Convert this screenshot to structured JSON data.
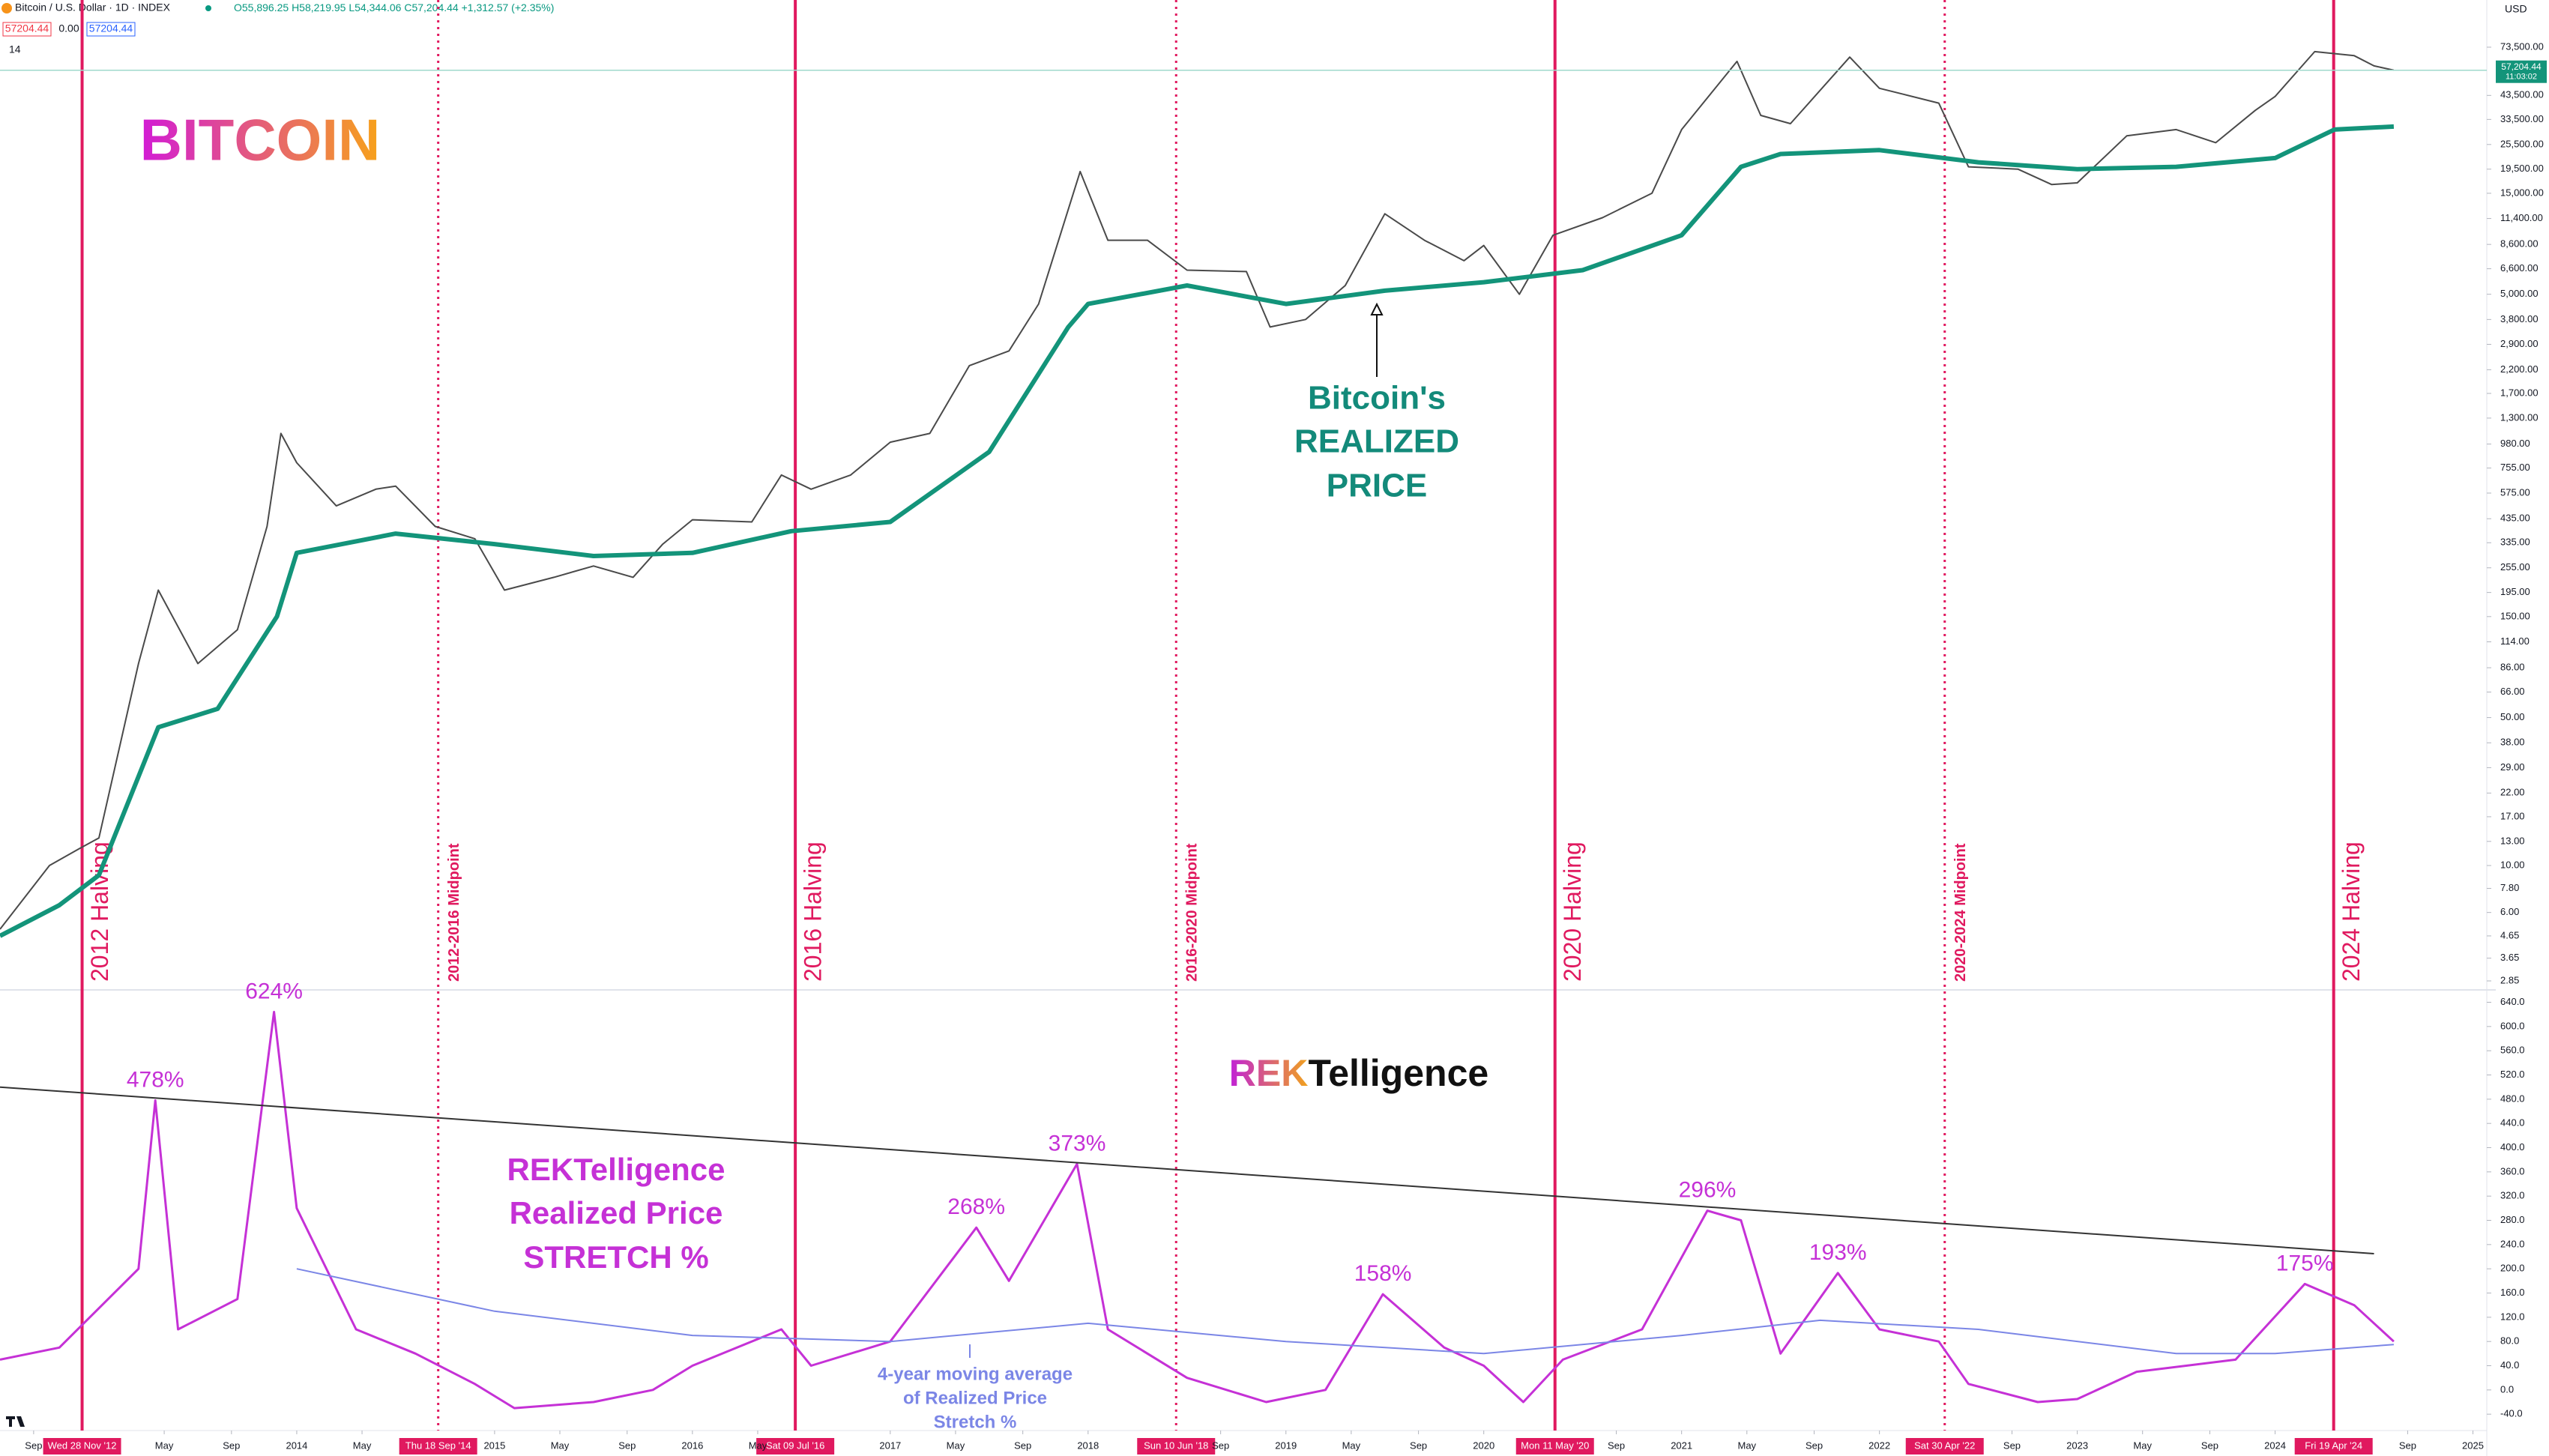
{
  "header": {
    "symbol": "Bitcoin / U.S. Dollar · 1D · INDEX",
    "ohlc": [
      "O55,896.25",
      "H58,219.95",
      "L54,344.06",
      "C57,204.44",
      "+1,312.57 (+2.35%)"
    ],
    "boxes": [
      "57204.44",
      "0.00",
      "57204.44"
    ],
    "interval": "14",
    "currency": "USD"
  },
  "annotations": {
    "bitcoin_logo": "BITCOIN",
    "realized_note": [
      "Bitcoin's",
      "REALIZED",
      "PRICE"
    ],
    "rekt_logo": "REKTelligence",
    "stretch_title": [
      "REKTelligence",
      "Realized Price",
      "STRETCH %"
    ],
    "ma_note": [
      "4-year moving average",
      "of Realized Price",
      "Stretch %"
    ]
  },
  "chart_data": [
    {
      "type": "line",
      "log_scale": true,
      "xlim": [
        2012.5,
        2025.07
      ],
      "ylim": [
        2.67,
        122800
      ],
      "yticks": [
        {
          "value": 73500,
          "label": "73,500.00"
        },
        {
          "value": 43500,
          "label": "43,500.00"
        },
        {
          "value": 33500,
          "label": "33,500.00"
        },
        {
          "value": 25500,
          "label": "25,500.00"
        },
        {
          "value": 19500,
          "label": "19,500.00"
        },
        {
          "value": 15000,
          "label": "15,000.00"
        },
        {
          "value": 11400,
          "label": "11,400.00"
        },
        {
          "value": 8600,
          "label": "8,600.00"
        },
        {
          "value": 6600,
          "label": "6,600.00"
        },
        {
          "value": 5000,
          "label": "5,000.00"
        },
        {
          "value": 3800,
          "label": "3,800.00"
        },
        {
          "value": 2900,
          "label": "2,900.00"
        },
        {
          "value": 2200,
          "label": "2,200.00"
        },
        {
          "value": 1700,
          "label": "1,700.00"
        },
        {
          "value": 1300,
          "label": "1,300.00"
        },
        {
          "value": 980,
          "label": "980.00"
        },
        {
          "value": 755,
          "label": "755.00"
        },
        {
          "value": 575,
          "label": "575.00"
        },
        {
          "value": 435,
          "label": "435.00"
        },
        {
          "value": 335,
          "label": "335.00"
        },
        {
          "value": 255,
          "label": "255.00"
        },
        {
          "value": 195,
          "label": "195.00"
        },
        {
          "value": 150,
          "label": "150.00"
        },
        {
          "value": 114,
          "label": "114.00"
        },
        {
          "value": 86,
          "label": "86.00"
        },
        {
          "value": 66,
          "label": "66.00"
        },
        {
          "value": 50,
          "label": "50.00"
        },
        {
          "value": 38,
          "label": "38.00"
        },
        {
          "value": 29,
          "label": "29.00"
        },
        {
          "value": 22,
          "label": "22.00"
        },
        {
          "value": 17,
          "label": "17.00"
        },
        {
          "value": 13,
          "label": "13.00"
        },
        {
          "value": 10,
          "label": "10.00"
        },
        {
          "value": 7.8,
          "label": "7.80"
        },
        {
          "value": 6,
          "label": "6.00"
        },
        {
          "value": 4.65,
          "label": "4.65"
        },
        {
          "value": 3.65,
          "label": "3.65"
        },
        {
          "value": 2.85,
          "label": "2.85"
        }
      ],
      "series": [
        {
          "color": "#4a4a4a",
          "width": 2,
          "x": [
            2012.5,
            2012.75,
            2012.9,
            2013.0,
            2013.2,
            2013.3,
            2013.5,
            2013.7,
            2013.85,
            2013.92,
            2014.0,
            2014.2,
            2014.4,
            2014.5,
            2014.7,
            2014.9,
            2015.05,
            2015.3,
            2015.5,
            2015.7,
            2015.85,
            2016.0,
            2016.3,
            2016.45,
            2016.6,
            2016.8,
            2017.0,
            2017.2,
            2017.4,
            2017.6,
            2017.75,
            2017.96,
            2018.1,
            2018.3,
            2018.5,
            2018.8,
            2018.92,
            2019.1,
            2019.3,
            2019.5,
            2019.7,
            2019.9,
            2020.0,
            2020.18,
            2020.35,
            2020.6,
            2020.85,
            2021.0,
            2021.28,
            2021.4,
            2021.55,
            2021.85,
            2022.0,
            2022.3,
            2022.45,
            2022.7,
            2022.87,
            2023.0,
            2023.25,
            2023.5,
            2023.7,
            2023.9,
            2024.0,
            2024.2,
            2024.4,
            2024.5,
            2024.6
          ],
          "values": [
            5,
            10,
            12,
            13.5,
            90,
            200,
            90,
            130,
            400,
            1100,
            800,
            500,
            600,
            620,
            400,
            350,
            200,
            230,
            260,
            230,
            330,
            430,
            420,
            700,
            600,
            700,
            1000,
            1100,
            2300,
            2700,
            4500,
            19000,
            9000,
            9000,
            6500,
            6400,
            3500,
            3800,
            5500,
            12000,
            9000,
            7200,
            8500,
            5000,
            9500,
            11500,
            15000,
            30000,
            63000,
            35000,
            32000,
            66000,
            47000,
            40000,
            20000,
            19500,
            16500,
            16800,
            28000,
            30000,
            26000,
            37000,
            43000,
            70000,
            67000,
            60000,
            57204.44
          ]
        },
        {
          "color": "#13947a",
          "width": 6,
          "x": [
            2012.5,
            2012.8,
            2013.0,
            2013.3,
            2013.6,
            2013.9,
            2014.0,
            2014.5,
            2015.0,
            2015.5,
            2016.0,
            2016.5,
            2017.0,
            2017.5,
            2017.9,
            2018.0,
            2018.5,
            2019.0,
            2019.5,
            2020.0,
            2020.5,
            2021.0,
            2021.3,
            2021.5,
            2022.0,
            2022.5,
            2023.0,
            2023.5,
            2024.0,
            2024.3,
            2024.6
          ],
          "values": [
            4.65,
            6.5,
            9,
            45,
            55,
            150,
            300,
            370,
            330,
            290,
            300,
            380,
            420,
            900,
            3500,
            4500,
            5500,
            4500,
            5200,
            5700,
            6500,
            9500,
            20000,
            23000,
            24000,
            21000,
            19500,
            20000,
            22000,
            30000,
            31000
          ]
        }
      ],
      "events": [
        {
          "x": 2012.915,
          "label": "2012 Halving",
          "date": "Wed 28 Nov '12",
          "style": "solid"
        },
        {
          "x": 2014.715,
          "label": "2012-2016 Midpoint",
          "date": "Thu 18 Sep '14",
          "style": "dotted"
        },
        {
          "x": 2016.52,
          "label": "2016 Halving",
          "date": "Sat 09 Jul '16",
          "style": "solid"
        },
        {
          "x": 2018.445,
          "label": "2016-2020 Midpoint",
          "date": "Sun 10 Jun '18",
          "style": "dotted"
        },
        {
          "x": 2020.36,
          "label": "2020 Halving",
          "date": "Mon 11 May '20",
          "style": "solid"
        },
        {
          "x": 2022.33,
          "label": "2020-2024 Midpoint",
          "date": "Sat 30 Apr '22",
          "style": "dotted"
        },
        {
          "x": 2024.296,
          "label": "2024 Halving",
          "date": "Fri 19 Apr '24",
          "style": "solid"
        }
      ],
      "event_color": "#e0195f",
      "last_price": {
        "value": 57204.44,
        "label": "57,204.44",
        "time": "11:03:02",
        "color": "#13947a"
      }
    },
    {
      "type": "line",
      "xlim": [
        2012.5,
        2025.07
      ],
      "ylim": [
        -67,
        653
      ],
      "yticks": [
        {
          "value": 640,
          "label": "640.0"
        },
        {
          "value": 600,
          "label": "600.0"
        },
        {
          "value": 560,
          "label": "560.0"
        },
        {
          "value": 520,
          "label": "520.0"
        },
        {
          "value": 480,
          "label": "480.0"
        },
        {
          "value": 440,
          "label": "440.0"
        },
        {
          "value": 400,
          "label": "400.0"
        },
        {
          "value": 360,
          "label": "360.0"
        },
        {
          "value": 320,
          "label": "320.0"
        },
        {
          "value": 280,
          "label": "280.0"
        },
        {
          "value": 240,
          "label": "240.0"
        },
        {
          "value": 200,
          "label": "200.0"
        },
        {
          "value": 160,
          "label": "160.0"
        },
        {
          "value": 120,
          "label": "120.0"
        },
        {
          "value": 80,
          "label": "80.0"
        },
        {
          "value": 40,
          "label": "40.0"
        },
        {
          "value": 0,
          "label": "0.0"
        },
        {
          "value": -40,
          "label": "-40.0"
        }
      ],
      "xticks": [
        {
          "value": 2012.67,
          "label": "Sep"
        },
        {
          "value": 2013.33,
          "label": "May"
        },
        {
          "value": 2013.67,
          "label": "Sep"
        },
        2014,
        {
          "value": 2014.33,
          "label": "May"
        },
        2015,
        {
          "value": 2015.33,
          "label": "May"
        },
        {
          "value": 2015.67,
          "label": "Sep"
        },
        2016,
        {
          "value": 2016.33,
          "label": "May"
        },
        2017,
        {
          "value": 2017.33,
          "label": "May"
        },
        {
          "value": 2017.67,
          "label": "Sep"
        },
        2018,
        {
          "value": 2018.67,
          "label": "Sep"
        },
        2019,
        {
          "value": 2019.33,
          "label": "May"
        },
        {
          "value": 2019.67,
          "label": "Sep"
        },
        2020,
        {
          "value": 2020.67,
          "label": "Sep"
        },
        2021,
        {
          "value": 2021.33,
          "label": "May"
        },
        {
          "value": 2021.67,
          "label": "Sep"
        },
        2022,
        {
          "value": 2022.67,
          "label": "Sep"
        },
        2023,
        {
          "value": 2023.33,
          "label": "May"
        },
        {
          "value": 2023.67,
          "label": "Sep"
        },
        2024,
        {
          "value": 2024.67,
          "label": "Sep"
        },
        2025
      ],
      "series": [
        {
          "color": "#c531d6",
          "width": 3,
          "x": [
            2012.5,
            2012.8,
            2013.2,
            2013.285,
            2013.4,
            2013.7,
            2013.885,
            2014.0,
            2014.3,
            2014.6,
            2014.9,
            2015.1,
            2015.5,
            2015.8,
            2016.0,
            2016.45,
            2016.6,
            2017.0,
            2017.435,
            2017.6,
            2017.944,
            2018.1,
            2018.5,
            2018.9,
            2019.2,
            2019.49,
            2019.8,
            2020.0,
            2020.2,
            2020.4,
            2020.8,
            2021.13,
            2021.3,
            2021.5,
            2021.79,
            2022.0,
            2022.3,
            2022.45,
            2022.8,
            2023.0,
            2023.3,
            2023.8,
            2024.15,
            2024.4,
            2024.6
          ],
          "values": [
            50,
            70,
            200,
            478,
            100,
            150,
            624,
            300,
            100,
            60,
            10,
            -30,
            -20,
            0,
            40,
            100,
            40,
            80,
            268,
            180,
            373,
            100,
            20,
            -20,
            0,
            158,
            70,
            40,
            -20,
            50,
            100,
            296,
            280,
            60,
            193,
            100,
            80,
            10,
            -20,
            -15,
            30,
            50,
            175,
            140,
            80
          ],
          "value_labels": [
            null,
            null,
            null,
            "478%",
            null,
            null,
            "624%",
            null,
            null,
            null,
            null,
            null,
            null,
            null,
            null,
            null,
            null,
            null,
            "268%",
            null,
            "373%",
            null,
            null,
            null,
            null,
            "158%",
            null,
            null,
            null,
            null,
            null,
            "296%",
            null,
            null,
            "193%",
            null,
            null,
            null,
            null,
            null,
            null,
            null,
            "175%",
            null,
            null
          ]
        },
        {
          "color": "#7b86e6",
          "width": 2,
          "x": [
            2014.0,
            2015.0,
            2016.0,
            2017.0,
            2018.0,
            2019.0,
            2020.0,
            2021.0,
            2021.7,
            2022.5,
            2023.5,
            2024.0,
            2024.6
          ],
          "values": [
            200,
            130,
            90,
            80,
            110,
            80,
            60,
            90,
            115,
            100,
            60,
            60,
            75
          ]
        },
        {
          "color": "#333333",
          "width": 2,
          "x": [
            2012.5,
            2024.5
          ],
          "values": [
            500,
            225
          ]
        }
      ]
    }
  ]
}
